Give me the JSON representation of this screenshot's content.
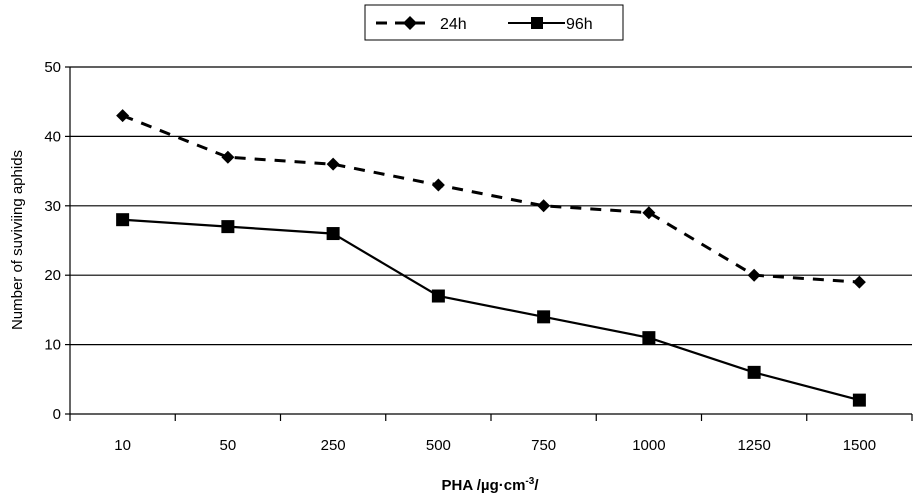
{
  "chart_data": {
    "type": "line",
    "title": "",
    "xlabel": "PHA /µg·cm",
    "xlabel_superscript": "-3",
    "xlabel_suffix": "/",
    "ylabel": "Number of suviviing aphids",
    "categories": [
      "10",
      "50",
      "250",
      "500",
      "750",
      "1000",
      "1250",
      "1500"
    ],
    "ylim": [
      0,
      50
    ],
    "yticks": [
      0,
      10,
      20,
      30,
      40,
      50
    ],
    "grid": true,
    "legend_position": "top-center",
    "series": [
      {
        "name": "24h",
        "values": [
          43,
          37,
          36,
          33,
          30,
          29,
          20,
          19
        ],
        "line_style": "dashed",
        "marker": "diamond",
        "color": "#000000"
      },
      {
        "name": "96h",
        "values": [
          28,
          27,
          26,
          17,
          14,
          11,
          6,
          2
        ],
        "line_style": "solid",
        "marker": "square",
        "color": "#000000"
      }
    ]
  }
}
